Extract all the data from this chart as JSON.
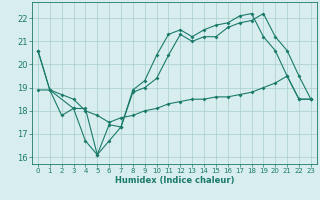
{
  "xlabel": "Humidex (Indice chaleur)",
  "bg_color": "#d8eeee",
  "grid_color": "#aacccc",
  "line_color": "#1a7a6a",
  "xlim": [
    -0.5,
    23.5
  ],
  "ylim": [
    15.7,
    22.7
  ],
  "yticks": [
    16,
    17,
    18,
    19,
    20,
    21,
    22
  ],
  "xticks": [
    0,
    1,
    2,
    3,
    4,
    5,
    6,
    7,
    8,
    9,
    10,
    11,
    12,
    13,
    14,
    15,
    16,
    17,
    18,
    19,
    20,
    21,
    22,
    23
  ],
  "line1_x": [
    0,
    1,
    3,
    4,
    5,
    6,
    7,
    8,
    9,
    10,
    11,
    12,
    13,
    14,
    15,
    16,
    17,
    18,
    19,
    20,
    21,
    22,
    23
  ],
  "line1_y": [
    20.6,
    18.9,
    18.1,
    16.7,
    16.1,
    17.4,
    17.3,
    18.9,
    19.3,
    20.4,
    21.3,
    21.5,
    21.2,
    21.5,
    21.7,
    21.8,
    22.1,
    22.2,
    21.2,
    20.6,
    19.5,
    18.5,
    18.5
  ],
  "line2_x": [
    0,
    1,
    2,
    3,
    4,
    5,
    6,
    7,
    8,
    9,
    10,
    11,
    12,
    13,
    14,
    15,
    16,
    17,
    18,
    19,
    20,
    21,
    22,
    23
  ],
  "line2_y": [
    20.6,
    18.9,
    17.8,
    18.1,
    18.1,
    16.1,
    16.7,
    17.3,
    18.8,
    19.0,
    19.4,
    20.4,
    21.3,
    21.0,
    21.2,
    21.2,
    21.6,
    21.8,
    21.9,
    22.2,
    21.2,
    20.6,
    19.5,
    18.5
  ],
  "line3_x": [
    0,
    1,
    2,
    3,
    4,
    5,
    6,
    7,
    8,
    9,
    10,
    11,
    12,
    13,
    14,
    15,
    16,
    17,
    18,
    19,
    20,
    21,
    22,
    23
  ],
  "line3_y": [
    18.9,
    18.9,
    18.7,
    18.5,
    18.0,
    17.8,
    17.5,
    17.7,
    17.8,
    18.0,
    18.1,
    18.3,
    18.4,
    18.5,
    18.5,
    18.6,
    18.6,
    18.7,
    18.8,
    19.0,
    19.2,
    19.5,
    18.5,
    18.5
  ],
  "xlabel_fontsize": 6,
  "tick_fontsize": 5,
  "ytick_fontsize": 6,
  "linewidth": 0.8,
  "markersize": 2.0
}
